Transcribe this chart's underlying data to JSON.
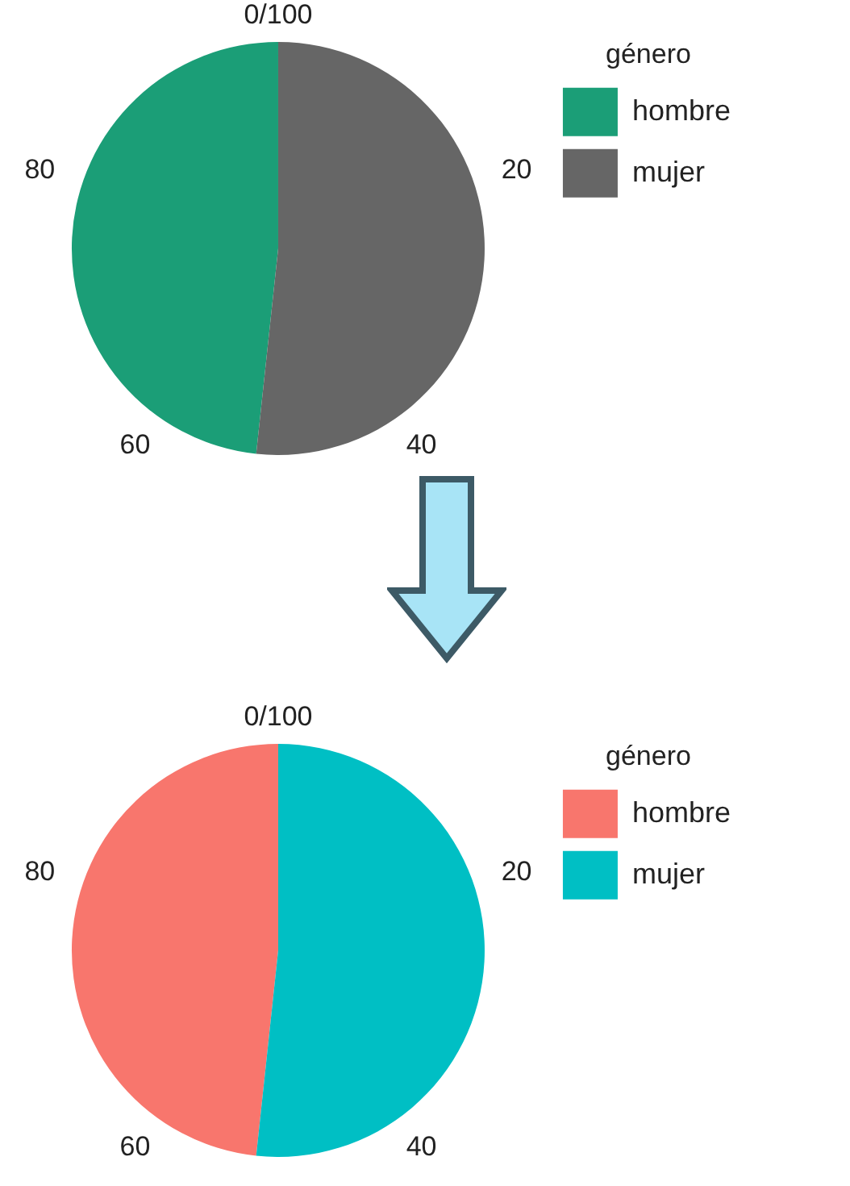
{
  "chart_data": [
    {
      "type": "pie",
      "categories": [
        "hombre",
        "mujer"
      ],
      "values": [
        48.3,
        51.7
      ],
      "colors": [
        "#1b9e77",
        "#666666"
      ],
      "legend": "right",
      "legend_title": "género",
      "annotations": [
        "0/100",
        "20",
        "40",
        "60",
        "80"
      ]
    },
    {
      "type": "pie",
      "categories": [
        "hombre",
        "mujer"
      ],
      "values": [
        48.3,
        51.7
      ],
      "colors": [
        "#f8766d",
        "#00bfc4"
      ],
      "legend": "right",
      "legend_title": "género",
      "annotations": [
        "0/100",
        "20",
        "40",
        "60",
        "80"
      ]
    }
  ]
}
